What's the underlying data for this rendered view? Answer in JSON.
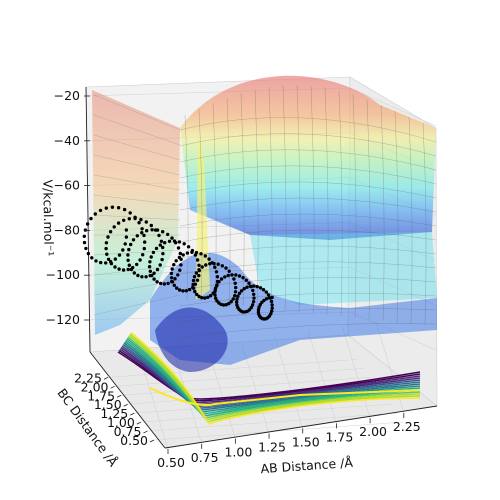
{
  "chart_data": {
    "type": "surface3d",
    "title": "",
    "xlabel": "AB Distance /Å",
    "ylabel": "BC Distance /Å",
    "zlabel": "V/kcal.mol$^{-1}$",
    "zlabel_display": "V/kcal.mol⁻¹",
    "x_ticks": [
      0.5,
      0.75,
      1.0,
      1.25,
      1.5,
      1.75,
      2.0,
      2.25
    ],
    "x_tick_labels": [
      "0.50",
      "0.75",
      "1.00",
      "1.25",
      "1.50",
      "1.75",
      "2.00",
      "2.25"
    ],
    "y_ticks": [
      0.5,
      0.75,
      1.0,
      1.25,
      1.5,
      1.75,
      2.0,
      2.25
    ],
    "y_tick_labels": [
      "0.50",
      "0.75",
      "1.00",
      "1.25",
      "1.50",
      "1.75",
      "2.00",
      "2.25"
    ],
    "z_ticks": [
      -120,
      -100,
      -80,
      -60,
      -40,
      -20
    ],
    "z_tick_labels": [
      "−120",
      "−100",
      "−80",
      "−60",
      "−40",
      "−20"
    ],
    "xlim": [
      0.5,
      2.4
    ],
    "ylim": [
      0.5,
      2.4
    ],
    "zlim": [
      -135,
      -18
    ],
    "colormap_surface": "jet",
    "colormap_contour": "viridis",
    "trajectory_color": "#000000",
    "grid": true
  }
}
